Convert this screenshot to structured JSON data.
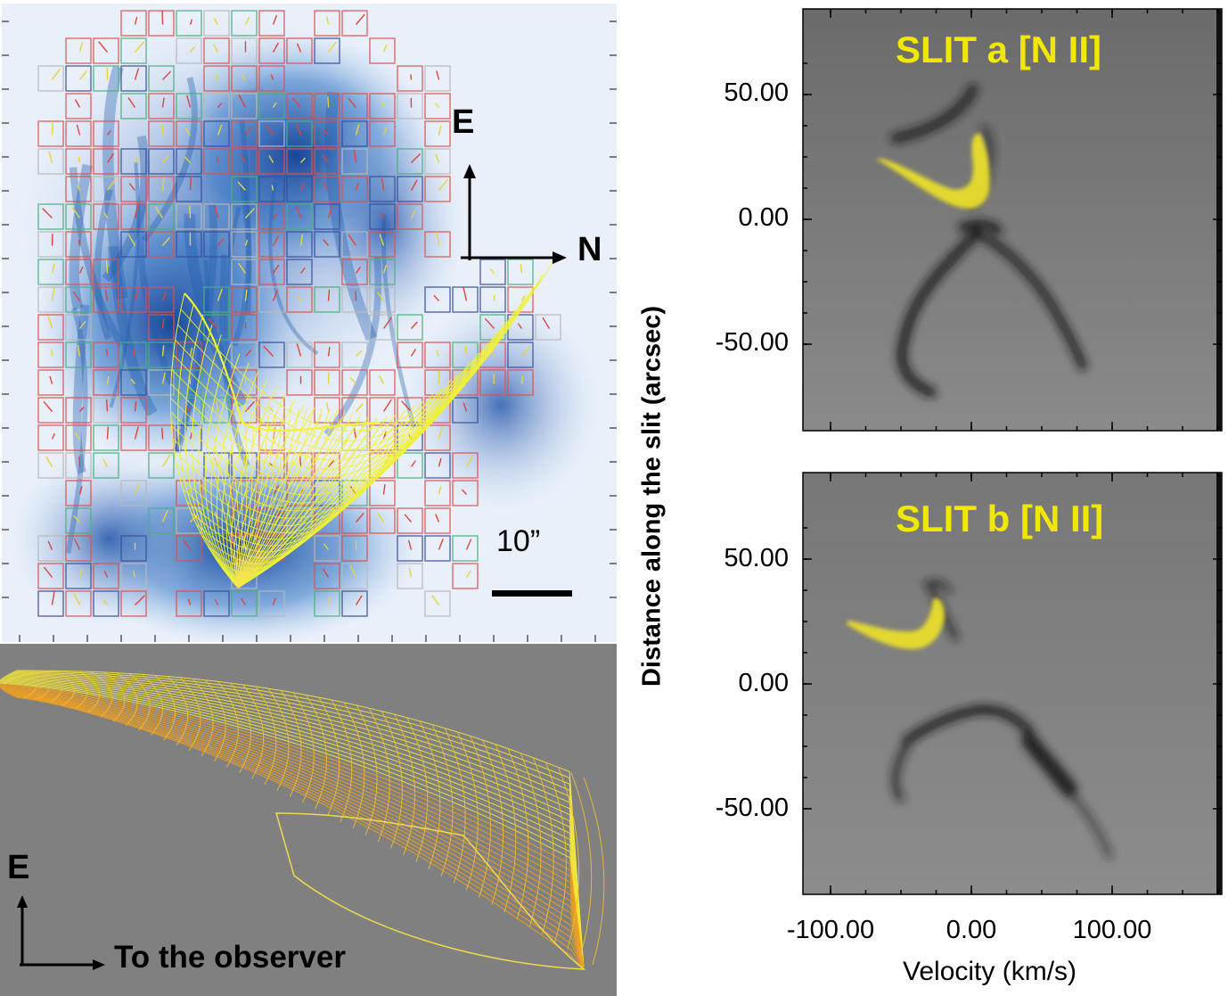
{
  "image_panel": {
    "direction_up": "E",
    "direction_right": "N",
    "scale_label": "10”"
  },
  "model_panel": {
    "direction_up": "E",
    "direction_right": "To the observer"
  },
  "pv_panels": {
    "slit_a_title": "SLIT a [N II]",
    "slit_b_title": "SLIT b [N II]",
    "y_axis_label": "Distance along the slit  (arcsec)",
    "x_axis_label": "Velocity (km/s)",
    "y_ticks": [
      "50.00",
      "0.00",
      "-50.00"
    ],
    "x_ticks": [
      "-100.00",
      "0.00",
      "100.00"
    ]
  },
  "colors": {
    "model_wire_top": "#f2f23a",
    "model_wire_side": "#f0a020",
    "nebula_blue": "#2e6fc0",
    "pv_background": "#7a7a7a",
    "title_yellow": "#f0e800"
  },
  "icons": [
    "arrow-up-icon",
    "arrow-right-icon",
    "scale-bar-icon"
  ]
}
